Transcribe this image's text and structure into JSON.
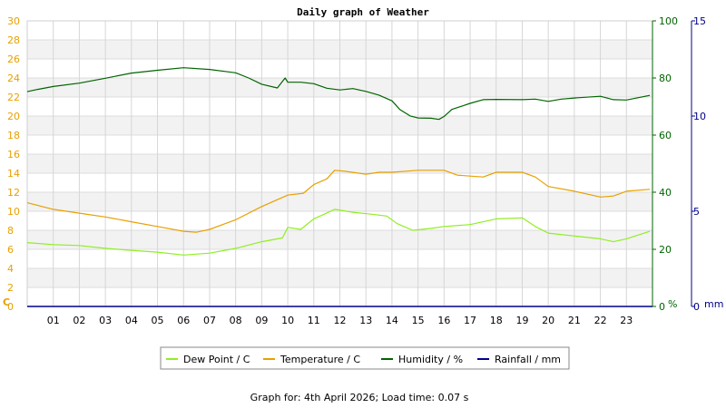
{
  "chart_data": {
    "type": "line",
    "title": "Daily graph of Weather",
    "footer": "Graph for: 4th April 2026; Load time: 0.07 s",
    "x": {
      "range": [
        0,
        24
      ],
      "ticks": [
        "01",
        "02",
        "03",
        "04",
        "05",
        "06",
        "07",
        "08",
        "09",
        "10",
        "11",
        "12",
        "13",
        "14",
        "15",
        "16",
        "17",
        "18",
        "19",
        "20",
        "21",
        "22",
        "23"
      ]
    },
    "axes": {
      "left": {
        "unit": "C",
        "range": [
          0,
          30
        ],
        "ticks": [
          "0",
          "2",
          "4",
          "6",
          "8",
          "10",
          "12",
          "14",
          "16",
          "18",
          "20",
          "22",
          "24",
          "26",
          "28",
          "30"
        ],
        "color": "#e8a000"
      },
      "right1": {
        "unit": "%",
        "range": [
          0,
          100
        ],
        "ticks": [
          "0",
          "20",
          "40",
          "60",
          "80",
          "100"
        ],
        "color": "#006400"
      },
      "right2": {
        "unit": "mm",
        "range": [
          0,
          15
        ],
        "ticks": [
          "0",
          "5",
          "10",
          "15"
        ],
        "color": "#00008b"
      }
    },
    "grid": true,
    "legend_position": "bottom",
    "series": [
      {
        "name": "Dew Point / C",
        "axis": "left",
        "color": "#90ee22",
        "points": [
          [
            0,
            6.7
          ],
          [
            1,
            6.5
          ],
          [
            2,
            6.4
          ],
          [
            3,
            6.1
          ],
          [
            4,
            5.9
          ],
          [
            5,
            5.7
          ],
          [
            6,
            5.4
          ],
          [
            7,
            5.6
          ],
          [
            8,
            6.1
          ],
          [
            9,
            6.8
          ],
          [
            9.8,
            7.2
          ],
          [
            10,
            8.3
          ],
          [
            10.5,
            8.1
          ],
          [
            11,
            9.2
          ],
          [
            11.8,
            10.2
          ],
          [
            12.5,
            9.9
          ],
          [
            13.2,
            9.7
          ],
          [
            13.8,
            9.5
          ],
          [
            14.2,
            8.7
          ],
          [
            14.8,
            8.0
          ],
          [
            15.5,
            8.2
          ],
          [
            16,
            8.4
          ],
          [
            17,
            8.6
          ],
          [
            18,
            9.2
          ],
          [
            19,
            9.3
          ],
          [
            19.5,
            8.4
          ],
          [
            20,
            7.7
          ],
          [
            21,
            7.4
          ],
          [
            22,
            7.1
          ],
          [
            22.5,
            6.8
          ],
          [
            23,
            7.1
          ],
          [
            23.9,
            7.9
          ]
        ]
      },
      {
        "name": "Temperature / C",
        "axis": "left",
        "color": "#e8a000",
        "points": [
          [
            0,
            10.9
          ],
          [
            1,
            10.2
          ],
          [
            2,
            9.8
          ],
          [
            3,
            9.4
          ],
          [
            4,
            8.9
          ],
          [
            5,
            8.4
          ],
          [
            6,
            7.9
          ],
          [
            6.5,
            7.8
          ],
          [
            7,
            8.1
          ],
          [
            8,
            9.1
          ],
          [
            9,
            10.5
          ],
          [
            10,
            11.7
          ],
          [
            10.6,
            11.9
          ],
          [
            11,
            12.8
          ],
          [
            11.5,
            13.4
          ],
          [
            11.8,
            14.3
          ],
          [
            12.2,
            14.2
          ],
          [
            13,
            13.9
          ],
          [
            13.5,
            14.1
          ],
          [
            14,
            14.1
          ],
          [
            15,
            14.3
          ],
          [
            16,
            14.3
          ],
          [
            16.5,
            13.8
          ],
          [
            17,
            13.7
          ],
          [
            17.5,
            13.6
          ],
          [
            18,
            14.1
          ],
          [
            19,
            14.1
          ],
          [
            19.5,
            13.6
          ],
          [
            20,
            12.6
          ],
          [
            21,
            12.1
          ],
          [
            22,
            11.5
          ],
          [
            22.5,
            11.6
          ],
          [
            23,
            12.1
          ],
          [
            23.9,
            12.3
          ]
        ]
      },
      {
        "name": "Humidity / %",
        "axis": "right1",
        "color": "#006400",
        "points": [
          [
            0,
            75.2
          ],
          [
            0.4,
            76.0
          ],
          [
            1,
            77.0
          ],
          [
            2,
            78.2
          ],
          [
            3,
            79.9
          ],
          [
            4,
            81.7
          ],
          [
            5,
            82.7
          ],
          [
            6,
            83.6
          ],
          [
            7,
            83.0
          ],
          [
            8,
            81.8
          ],
          [
            8.5,
            80.0
          ],
          [
            9,
            77.8
          ],
          [
            9.6,
            76.5
          ],
          [
            9.9,
            80.0
          ],
          [
            10,
            78.5
          ],
          [
            10.5,
            78.5
          ],
          [
            11,
            78.0
          ],
          [
            11.5,
            76.4
          ],
          [
            12,
            75.8
          ],
          [
            12.5,
            76.3
          ],
          [
            13,
            75.3
          ],
          [
            13.5,
            74.0
          ],
          [
            14,
            72.0
          ],
          [
            14.3,
            69.0
          ],
          [
            14.7,
            66.7
          ],
          [
            15,
            66.0
          ],
          [
            15.5,
            65.9
          ],
          [
            15.8,
            65.5
          ],
          [
            16,
            66.5
          ],
          [
            16.3,
            69.0
          ],
          [
            16.8,
            70.5
          ],
          [
            17,
            71.1
          ],
          [
            17.5,
            72.4
          ],
          [
            18,
            72.5
          ],
          [
            19,
            72.4
          ],
          [
            19.5,
            72.6
          ],
          [
            20,
            71.8
          ],
          [
            20.5,
            72.6
          ],
          [
            21,
            73.0
          ],
          [
            22,
            73.6
          ],
          [
            22.5,
            72.4
          ],
          [
            23,
            72.3
          ],
          [
            23.9,
            73.9
          ]
        ]
      },
      {
        "name": "Rainfall / mm",
        "axis": "right2",
        "color": "#00008b",
        "points": [
          [
            0,
            0
          ],
          [
            24,
            0
          ]
        ]
      }
    ]
  }
}
